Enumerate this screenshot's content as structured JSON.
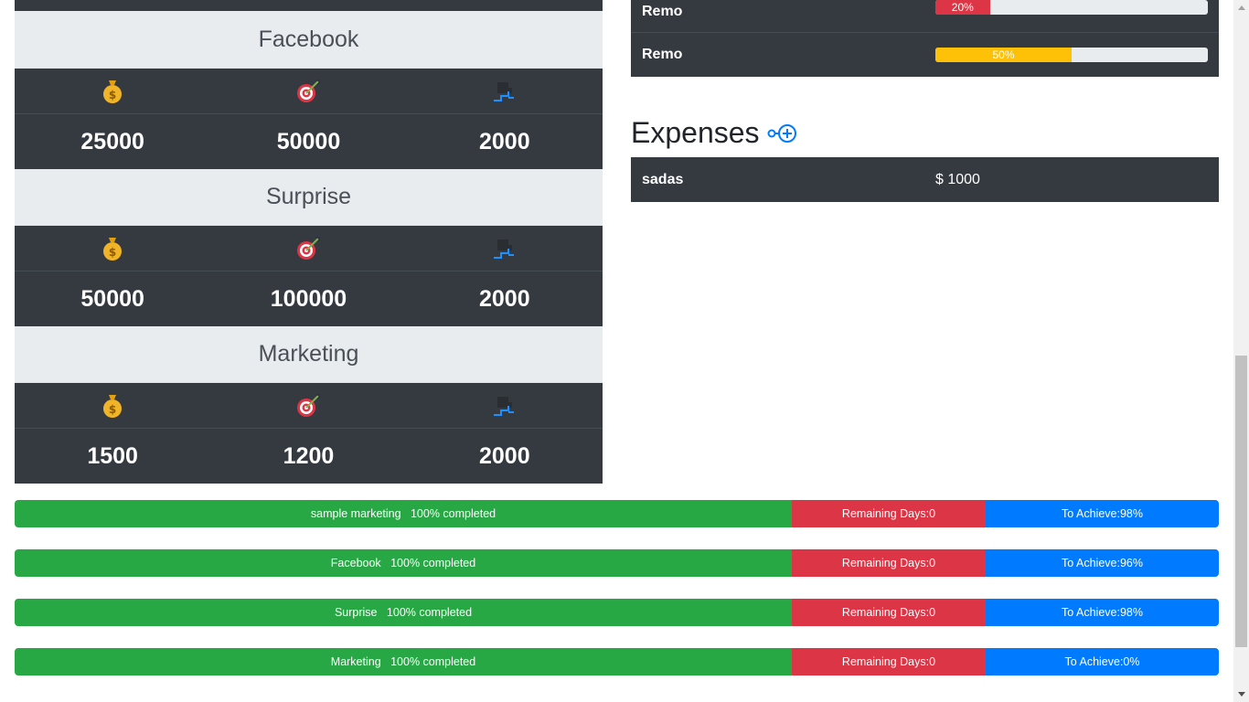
{
  "campaigns": [
    {
      "title": "Facebook",
      "budget": "25000",
      "target": "50000",
      "days": "2000"
    },
    {
      "title": "Surprise",
      "budget": "50000",
      "target": "100000",
      "days": "2000"
    },
    {
      "title": "Marketing",
      "budget": "1500",
      "target": "1200",
      "days": "2000"
    }
  ],
  "members": [
    {
      "name": "Remo",
      "progress_label": "20%",
      "progress_value": 20,
      "color": "#dc3545"
    },
    {
      "name": "Remo",
      "progress_label": "50%",
      "progress_value": 50,
      "color": "#ffc107"
    }
  ],
  "expenses": {
    "heading": "Expenses",
    "add_icon": "add-circle-icon",
    "items": [
      {
        "name": "sadas",
        "amount": "$ 1000"
      }
    ]
  },
  "summaries": [
    {
      "completed": "sample marketing   100% completed",
      "remaining": "Remaining Days:0",
      "achieve": "To Achieve:98%"
    },
    {
      "completed": "Facebook   100% completed",
      "remaining": "Remaining Days:0",
      "achieve": "To Achieve:96%"
    },
    {
      "completed": "Surprise   100% completed",
      "remaining": "Remaining Days:0",
      "achieve": "To Achieve:98%"
    },
    {
      "completed": "Marketing   100% completed",
      "remaining": "Remaining Days:0",
      "achieve": "To Achieve:0%"
    }
  ],
  "icons": {
    "budget": "money-bag-icon",
    "target": "target-icon",
    "days": "stairs-icon"
  },
  "colors": {
    "dark": "#343a40",
    "light": "#e9ecef",
    "success": "#28a745",
    "danger": "#dc3545",
    "primary": "#007bff",
    "warning": "#ffc107"
  }
}
